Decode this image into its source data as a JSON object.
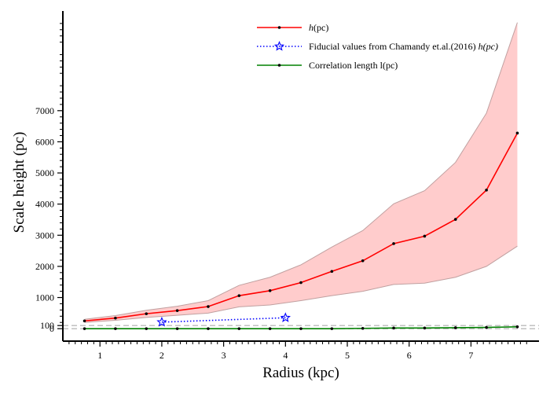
{
  "chart_data": {
    "type": "line",
    "title": "",
    "xlabel": "Radius (kpc)",
    "ylabel": "Scale height (pc)",
    "xlim": [
      0.4,
      8.1
    ],
    "ylim": [
      -400,
      10200
    ],
    "xticks": [
      1,
      2,
      3,
      4,
      5,
      6,
      7
    ],
    "yticks": [
      0,
      100,
      1000,
      2000,
      3000,
      4000,
      5000,
      6000,
      7000
    ],
    "reference_lines": [
      0,
      100
    ],
    "legend_position": "top-right",
    "legend": [
      {
        "label": "$h$(pc)",
        "prefix": "",
        "italic": "h",
        "suffix": "(pc)"
      },
      {
        "label": "Fiducial values from Chamandy et.al.(2016) $h(pc)$",
        "prefix": "Fiducial values from Chamandy et.al.(2016) ",
        "italic": "h(pc)",
        "suffix": ""
      },
      {
        "label": "Correlation length l(pc)",
        "prefix": "Correlation length l(pc)",
        "italic": "",
        "suffix": ""
      }
    ],
    "colors": {
      "h": "#ff0000",
      "band": "#ffcccc",
      "band_edge": "#c0a0a0",
      "fiducial": "#0000ff",
      "correlation": "#008000",
      "reference": "#bbbbbb"
    },
    "series": [
      {
        "name": "$h$(pc)",
        "x": [
          0.75,
          1.25,
          1.75,
          2.25,
          2.75,
          3.25,
          3.75,
          4.25,
          4.75,
          5.25,
          5.75,
          6.25,
          6.75,
          7.25,
          7.75
        ],
        "y": [
          250,
          340,
          480,
          580,
          710,
          1060,
          1220,
          1480,
          1840,
          2180,
          2730,
          2970,
          3510,
          4450,
          6280
        ],
        "lower": [
          200,
          270,
          360,
          430,
          500,
          700,
          760,
          900,
          1060,
          1200,
          1420,
          1460,
          1650,
          2000,
          2650
        ],
        "upper": [
          300,
          420,
          590,
          720,
          900,
          1390,
          1650,
          2050,
          2620,
          3150,
          4010,
          4430,
          5340,
          6920,
          9830
        ]
      },
      {
        "name": "Fiducial values from Chamandy et.al.(2016) $h(pc)$",
        "x": [
          2.0,
          4.0
        ],
        "y": [
          210,
          350
        ]
      },
      {
        "name": "Correlation length l(pc)",
        "x": [
          0.75,
          1.25,
          1.75,
          2.25,
          2.75,
          3.25,
          3.75,
          4.25,
          4.75,
          5.25,
          5.75,
          6.25,
          6.75,
          7.25,
          7.75
        ],
        "y": [
          0,
          0,
          0,
          0,
          0,
          0,
          0,
          0,
          0,
          10,
          20,
          20,
          30,
          40,
          60
        ]
      }
    ]
  }
}
